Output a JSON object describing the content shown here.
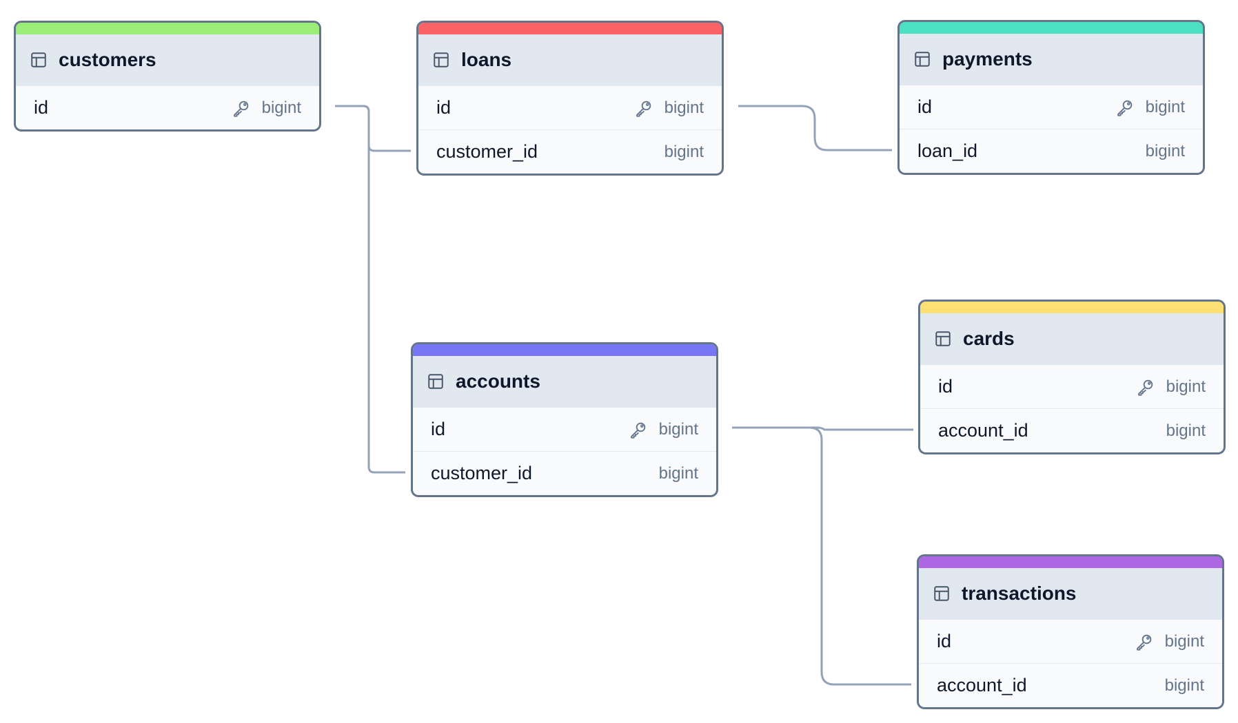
{
  "tables": [
    {
      "name": "customers",
      "color": "#9aee78",
      "columns": [
        {
          "name": "id",
          "type": "bigint",
          "primary_key": true
        }
      ]
    },
    {
      "name": "loans",
      "color": "#fb6366",
      "columns": [
        {
          "name": "id",
          "type": "bigint",
          "primary_key": true
        },
        {
          "name": "customer_id",
          "type": "bigint",
          "primary_key": false
        }
      ]
    },
    {
      "name": "payments",
      "color": "#4ddfc2",
      "columns": [
        {
          "name": "id",
          "type": "bigint",
          "primary_key": true
        },
        {
          "name": "loan_id",
          "type": "bigint",
          "primary_key": false
        }
      ]
    },
    {
      "name": "accounts",
      "color": "#7777f5",
      "columns": [
        {
          "name": "id",
          "type": "bigint",
          "primary_key": true
        },
        {
          "name": "customer_id",
          "type": "bigint",
          "primary_key": false
        }
      ]
    },
    {
      "name": "cards",
      "color": "#fde074",
      "columns": [
        {
          "name": "id",
          "type": "bigint",
          "primary_key": true
        },
        {
          "name": "account_id",
          "type": "bigint",
          "primary_key": false
        }
      ]
    },
    {
      "name": "transactions",
      "color": "#ad67e3",
      "columns": [
        {
          "name": "id",
          "type": "bigint",
          "primary_key": true
        },
        {
          "name": "account_id",
          "type": "bigint",
          "primary_key": false
        }
      ]
    }
  ]
}
